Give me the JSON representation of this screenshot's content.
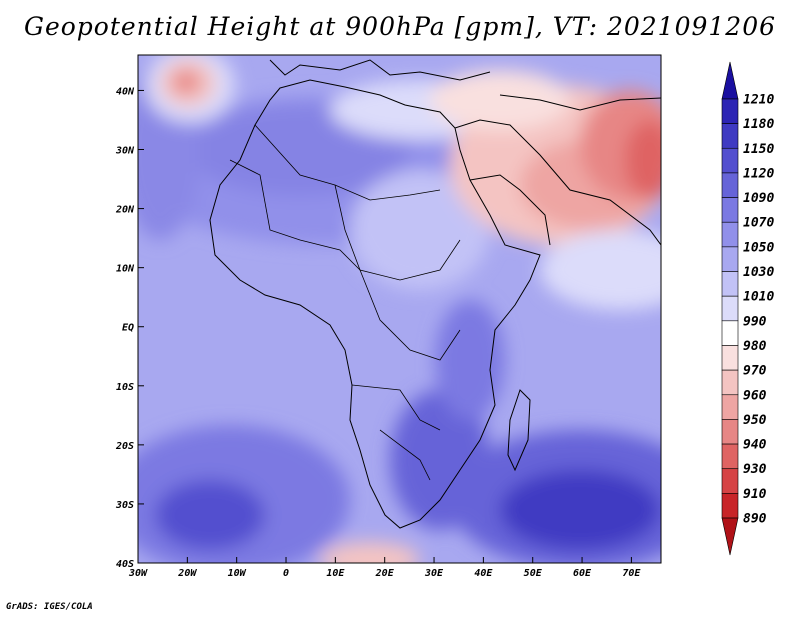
{
  "title": "Geopotential Height at 900hPa [gpm], VT: 2021091206",
  "footer": "GrADS: IGES/COLA",
  "map": {
    "region": "Africa",
    "lon_range": [
      -30,
      76
    ],
    "lat_range": [
      -40,
      46
    ],
    "x_ticks": [
      "30W",
      "20W",
      "10W",
      "0",
      "10E",
      "20E",
      "30E",
      "40E",
      "50E",
      "60E",
      "70E"
    ],
    "x_tick_values": [
      -30,
      -20,
      -10,
      0,
      10,
      20,
      30,
      40,
      50,
      60,
      70
    ],
    "y_ticks": [
      "40S",
      "30S",
      "20S",
      "10S",
      "EQ",
      "10N",
      "20N",
      "30N",
      "40N"
    ],
    "y_tick_values": [
      -40,
      -30,
      -20,
      -10,
      0,
      10,
      20,
      30,
      40
    ]
  },
  "colorbar": {
    "levels": [
      "1210",
      "1180",
      "1150",
      "1120",
      "1090",
      "1070",
      "1050",
      "1030",
      "1010",
      "990",
      "980",
      "970",
      "960",
      "950",
      "940",
      "930",
      "910",
      "890"
    ],
    "colors": [
      "#1a0fa0",
      "#2d25b4",
      "#3f3ac2",
      "#534fcf",
      "#6664d8",
      "#7b79e2",
      "#9190ea",
      "#a8a8f0",
      "#c2c2f6",
      "#dcdcfa",
      "#ffffff",
      "#f9e0df",
      "#f4c4c2",
      "#eea5a3",
      "#e78685",
      "#df6463",
      "#d64345",
      "#c82428",
      "#b01218"
    ]
  }
}
